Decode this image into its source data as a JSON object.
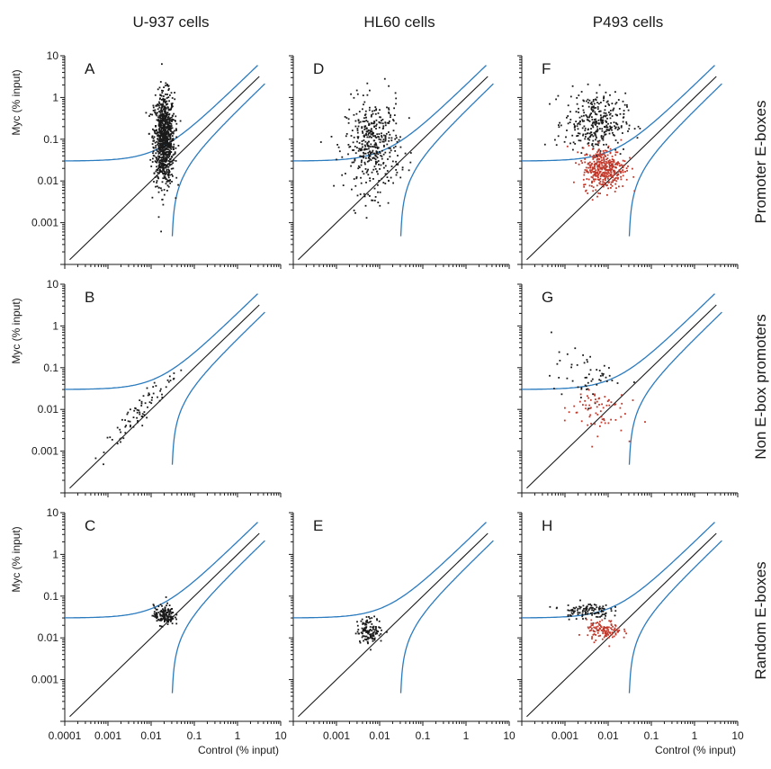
{
  "columns": [
    "U-937 cells",
    "HL60 cells",
    "P493 cells"
  ],
  "rows": [
    "Promoter E-boxes",
    "Non E-box promoters",
    "Random E-boxes"
  ],
  "axes": {
    "x_label": "Control (% input)",
    "y_label": "Myc (% input)",
    "x_ticks": [
      "0.0001",
      "0.001",
      "0.01",
      "0.1",
      "1",
      "10"
    ],
    "y_ticks": [
      "10",
      "1",
      "0.1",
      "0.01",
      "0.001"
    ]
  },
  "colors": {
    "diagonal": "#1a1a1a",
    "band": "#2b7bbf",
    "bound": "#1a1a1a",
    "unbound": "#c0392b"
  },
  "chart_data": [
    {
      "type": "scatter",
      "panel": "A",
      "row": 0,
      "col": 0,
      "x_scale": "log",
      "y_scale": "log",
      "xlim": [
        0.0001,
        10
      ],
      "ylim": [
        0.0001,
        10
      ],
      "reference_lines": [
        "y = x",
        "threshold bands"
      ],
      "clusters": [
        {
          "color": "#1a1a1a",
          "n": 900,
          "x_center": 0.02,
          "x_spread": 0.12,
          "y_center": 0.1,
          "y_spread": 0.55
        }
      ]
    },
    {
      "type": "scatter",
      "panel": "D",
      "row": 0,
      "col": 1,
      "x_scale": "log",
      "y_scale": "log",
      "xlim": [
        0.0001,
        10
      ],
      "ylim": [
        0.0001,
        10
      ],
      "reference_lines": [
        "y = x",
        "threshold bands"
      ],
      "clusters": [
        {
          "color": "#1a1a1a",
          "n": 420,
          "x_center": 0.007,
          "x_spread": 0.32,
          "y_center": 0.07,
          "y_spread": 0.55
        }
      ]
    },
    {
      "type": "scatter",
      "panel": "F",
      "row": 0,
      "col": 2,
      "x_scale": "log",
      "y_scale": "log",
      "xlim": [
        0.0001,
        10
      ],
      "ylim": [
        0.0001,
        10
      ],
      "reference_lines": [
        "y = x",
        "threshold bands"
      ],
      "clusters": [
        {
          "color": "#1a1a1a",
          "n": 330,
          "x_center": 0.005,
          "x_spread": 0.35,
          "y_center": 0.25,
          "y_spread": 0.35
        },
        {
          "color": "#c0392b",
          "n": 380,
          "x_center": 0.008,
          "x_spread": 0.25,
          "y_center": 0.02,
          "y_spread": 0.25
        }
      ]
    },
    {
      "type": "scatter",
      "panel": "B",
      "row": 1,
      "col": 0,
      "x_scale": "log",
      "y_scale": "log",
      "xlim": [
        0.0001,
        10
      ],
      "ylim": [
        0.0001,
        10
      ],
      "reference_lines": [
        "y = x",
        "threshold bands"
      ],
      "clusters": [
        {
          "color": "#1a1a1a",
          "n": 80,
          "x_center": 0.005,
          "x_spread": 0.4,
          "y_center": 0.008,
          "y_spread": 0.45,
          "correlated": true
        }
      ]
    },
    {
      "type": "scatter",
      "panel": "G",
      "row": 1,
      "col": 2,
      "x_scale": "log",
      "y_scale": "log",
      "xlim": [
        0.0001,
        10
      ],
      "ylim": [
        0.0001,
        10
      ],
      "reference_lines": [
        "y = x",
        "threshold bands"
      ],
      "clusters": [
        {
          "color": "#1a1a1a",
          "n": 55,
          "x_center": 0.003,
          "x_spread": 0.4,
          "y_center": 0.06,
          "y_spread": 0.3
        },
        {
          "color": "#c0392b",
          "n": 70,
          "x_center": 0.005,
          "x_spread": 0.35,
          "y_center": 0.01,
          "y_spread": 0.3
        }
      ]
    },
    {
      "type": "scatter",
      "panel": "C",
      "row": 2,
      "col": 0,
      "x_scale": "log",
      "y_scale": "log",
      "xlim": [
        0.0001,
        10
      ],
      "ylim": [
        0.0001,
        10
      ],
      "reference_lines": [
        "y = x",
        "threshold bands"
      ],
      "clusters": [
        {
          "color": "#1a1a1a",
          "n": 150,
          "x_center": 0.02,
          "x_spread": 0.12,
          "y_center": 0.035,
          "y_spread": 0.12
        }
      ]
    },
    {
      "type": "scatter",
      "panel": "E",
      "row": 2,
      "col": 1,
      "x_scale": "log",
      "y_scale": "log",
      "xlim": [
        0.0001,
        10
      ],
      "ylim": [
        0.0001,
        10
      ],
      "reference_lines": [
        "y = x",
        "threshold bands"
      ],
      "clusters": [
        {
          "color": "#1a1a1a",
          "n": 130,
          "x_center": 0.006,
          "x_spread": 0.15,
          "y_center": 0.015,
          "y_spread": 0.15
        }
      ]
    },
    {
      "type": "scatter",
      "panel": "H",
      "row": 2,
      "col": 2,
      "x_scale": "log",
      "y_scale": "log",
      "xlim": [
        0.0001,
        10
      ],
      "ylim": [
        0.0001,
        10
      ],
      "reference_lines": [
        "y = x",
        "threshold bands"
      ],
      "clusters": [
        {
          "color": "#1a1a1a",
          "n": 110,
          "x_center": 0.003,
          "x_spread": 0.28,
          "y_center": 0.045,
          "y_spread": 0.1
        },
        {
          "color": "#c0392b",
          "n": 120,
          "x_center": 0.008,
          "x_spread": 0.2,
          "y_center": 0.015,
          "y_spread": 0.12
        }
      ]
    }
  ]
}
